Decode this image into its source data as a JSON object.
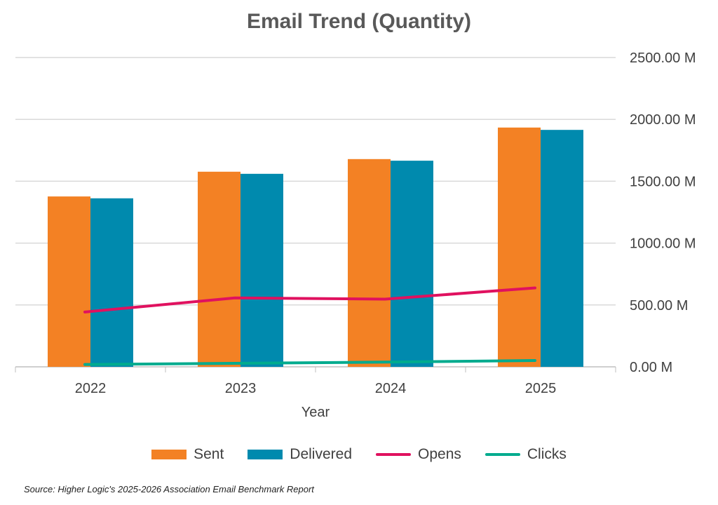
{
  "chart_data": {
    "type": "bar",
    "title": "Email Trend (Quantity)",
    "xlabel": "Year",
    "ylabel": "",
    "categories": [
      "2022",
      "2023",
      "2024",
      "2025"
    ],
    "ylim": [
      0,
      2500
    ],
    "yticks": [
      "0.00 M",
      "500.00 M",
      "1000.00 M",
      "1500.00 M",
      "2000.00 M",
      "2500.00 M"
    ],
    "ytick_values": [
      0,
      500,
      1000,
      1500,
      2000,
      2500
    ],
    "y_axis_side": "right",
    "grid": true,
    "legend_position": "bottom",
    "series": [
      {
        "name": "Sent",
        "kind": "bar",
        "color": "#F38124",
        "values": [
          1377,
          1577,
          1679,
          1934
        ]
      },
      {
        "name": "Delivered",
        "kind": "bar",
        "color": "#008AAE",
        "values": [
          1362,
          1560,
          1666,
          1915
        ]
      },
      {
        "name": "Opens",
        "kind": "line",
        "color": "#E0115F",
        "values": [
          443,
          557,
          547,
          638
        ]
      },
      {
        "name": "Clicks",
        "kind": "line",
        "color": "#00AB8E",
        "values": [
          19,
          28,
          38,
          51
        ]
      }
    ]
  },
  "source": "Source: Higher Logic's 2025-2026 Association Email Benchmark Report"
}
